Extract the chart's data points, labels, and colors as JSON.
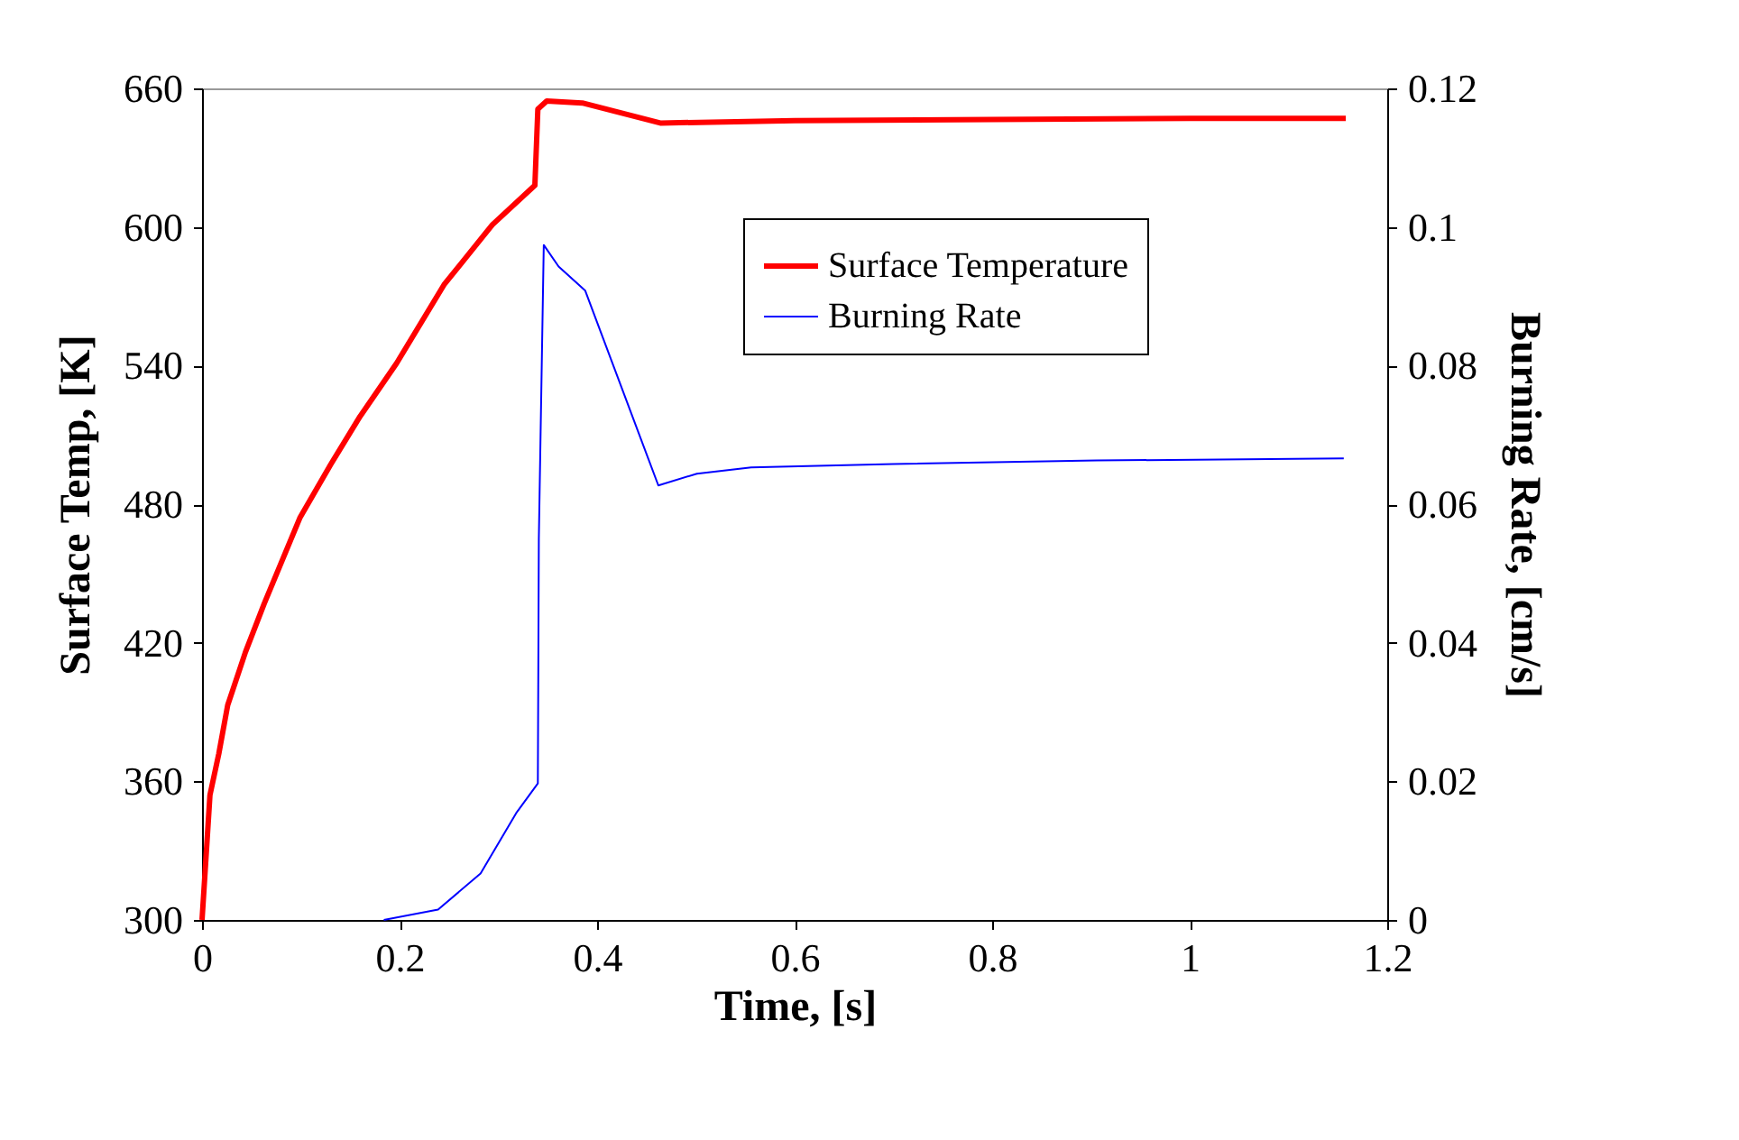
{
  "chart_data": {
    "type": "line",
    "xlabel": "Time, [s]",
    "ylabel": "Surface Temp, [K]",
    "y2label": "Burning Rate, [cm/s]",
    "xlim": [
      0,
      1.2
    ],
    "xticks": [
      0,
      0.2,
      0.4,
      0.6,
      0.8,
      1,
      1.2
    ],
    "ylim": [
      300,
      660
    ],
    "yticks": [
      300,
      360,
      420,
      480,
      540,
      600,
      660
    ],
    "y2lim": [
      0,
      0.12
    ],
    "y2ticks": [
      0,
      0.02,
      0.04,
      0.06,
      0.08,
      0.1,
      0.12
    ],
    "grid": false,
    "legend": "top right",
    "marker": "none",
    "line_style": "solid",
    "series": [
      {
        "name": "Surface Temperature",
        "color": "#ff0000",
        "axis": "y",
        "x": [
          0,
          0.008,
          0.017,
          0.026,
          0.044,
          0.063,
          0.099,
          0.13,
          0.16,
          0.197,
          0.245,
          0.294,
          0.337,
          0.34,
          0.349,
          0.385,
          0.464,
          0.6,
          0.8,
          1.0,
          1.158
        ],
        "values": [
          300,
          354,
          372,
          393,
          416,
          437,
          474,
          497,
          518,
          541,
          575,
          601,
          618,
          651,
          654.5,
          653.7,
          645,
          646,
          646.5,
          647,
          647
        ]
      },
      {
        "name": "Burning Rate",
        "color": "#0000ff",
        "axis": "y2",
        "x": [
          0.184,
          0.239,
          0.282,
          0.318,
          0.34,
          0.341,
          0.346,
          0.361,
          0.388,
          0.462,
          0.501,
          0.556,
          0.7,
          0.906,
          1.156
        ],
        "values": [
          0,
          0.0015,
          0.0067,
          0.0154,
          0.0197,
          0.055,
          0.0974,
          0.0943,
          0.0908,
          0.0627,
          0.0644,
          0.0653,
          0.0658,
          0.0663,
          0.0666
        ]
      }
    ]
  }
}
